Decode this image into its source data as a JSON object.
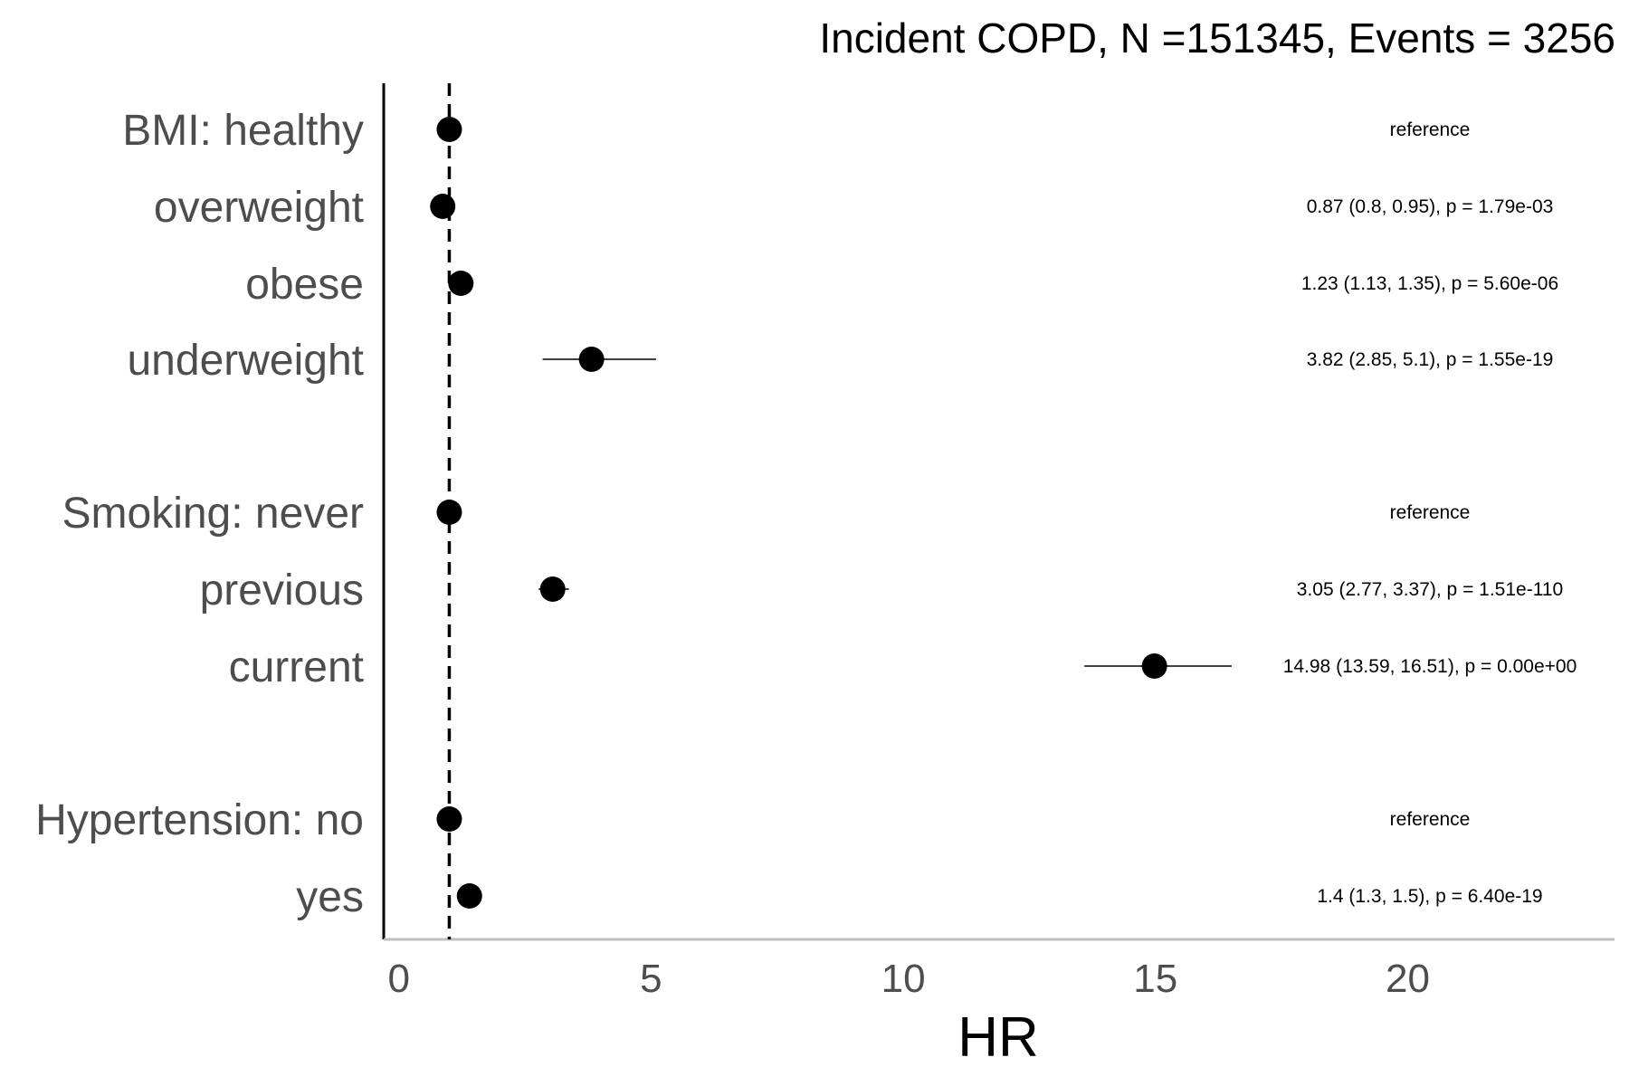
{
  "chart_data": {
    "type": "scatter",
    "title": "Incident COPD, N =151345, Events = 3256",
    "xlabel": "HR",
    "ylabel": "",
    "xlim": [
      -0.3,
      24.1
    ],
    "xticks": [
      "0",
      "5",
      "10",
      "15",
      "20"
    ],
    "reference_line_x": 1,
    "grid": false,
    "legend": "none",
    "point_color": "#000000",
    "rows": [
      {
        "label": "BMI: healthy",
        "hr": 1.0,
        "lower": null,
        "upper": null,
        "annotation": "reference"
      },
      {
        "label": "overweight",
        "hr": 0.87,
        "lower": 0.8,
        "upper": 0.95,
        "annotation": "0.87 (0.8, 0.95), p = 1.79e-03"
      },
      {
        "label": "obese",
        "hr": 1.23,
        "lower": 1.13,
        "upper": 1.35,
        "annotation": "1.23 (1.13, 1.35), p = 5.60e-06"
      },
      {
        "label": "underweight",
        "hr": 3.82,
        "lower": 2.85,
        "upper": 5.1,
        "annotation": "3.82 (2.85, 5.1), p = 1.55e-19"
      },
      {
        "label": "Smoking: never",
        "hr": 1.0,
        "lower": null,
        "upper": null,
        "annotation": "reference"
      },
      {
        "label": "previous",
        "hr": 3.05,
        "lower": 2.77,
        "upper": 3.37,
        "annotation": "3.05 (2.77, 3.37), p = 1.51e-110"
      },
      {
        "label": "current",
        "hr": 14.98,
        "lower": 13.59,
        "upper": 16.51,
        "annotation": "14.98 (13.59, 16.51), p = 0.00e+00"
      },
      {
        "label": "Hypertension: no",
        "hr": 1.0,
        "lower": null,
        "upper": null,
        "annotation": "reference"
      },
      {
        "label": "yes",
        "hr": 1.4,
        "lower": 1.3,
        "upper": 1.5,
        "annotation": "1.4 (1.3, 1.5), p = 6.40e-19"
      }
    ]
  }
}
